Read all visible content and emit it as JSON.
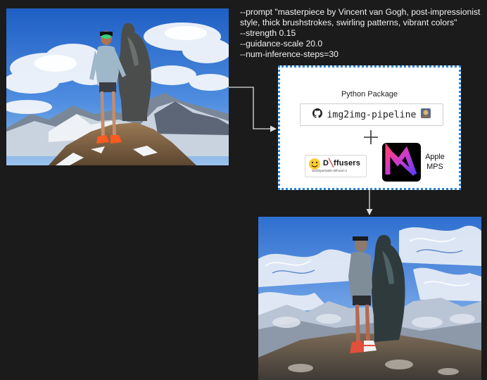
{
  "cli_lines": {
    "prompt": "--prompt \"masterpiece by Vincent van Gogh, post-impressionist style, thick brushstrokes, swirling patterns, vibrant colors\"",
    "strength": "--strength 0.15",
    "guidance": "--guidance-scale 20.0",
    "steps": "--num-inference-steps=30"
  },
  "package_box": {
    "title": "Python Package",
    "repo_name": "img2img-pipeline",
    "repo_icon": "github-icon",
    "plus_icon": "plus-icon",
    "diffusers": {
      "name": "Diffusers",
      "logo_text_d": "D",
      "logo_text_rest": "ffusers",
      "model": "stabilityai/stable-diffusion-2"
    },
    "mps": {
      "label_line1": "Apple",
      "label_line2": "MPS"
    }
  },
  "colors": {
    "background": "#1b1b1b",
    "box_border": "#2b86d6",
    "arrow": "#e0e0e0",
    "sky_blue": "#2f6fd0"
  }
}
